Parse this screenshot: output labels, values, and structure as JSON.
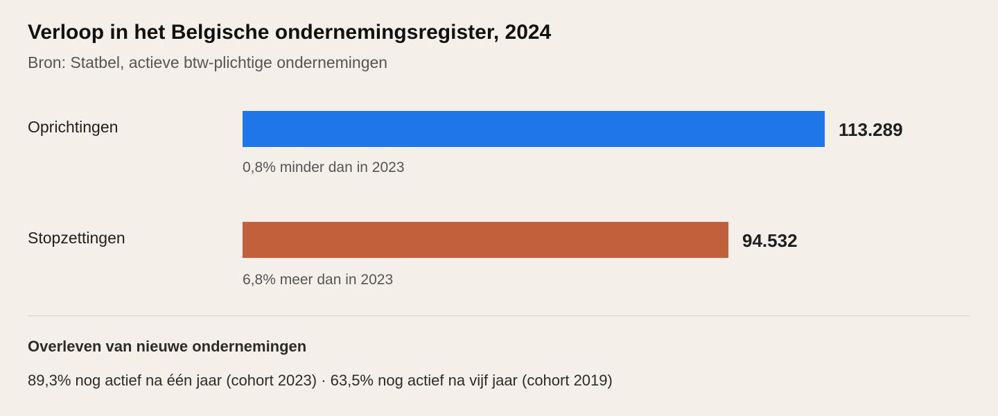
{
  "header": {
    "title": "Verloop in het Belgische ondernemingsregister, 2024",
    "subtitle": "Bron: Statbel, actieve btw-plichtige ondernemingen"
  },
  "chart_data": {
    "type": "bar",
    "orientation": "horizontal",
    "categories": [
      "Oprichtingen",
      "Stopzettingen"
    ],
    "values": [
      113289,
      94532
    ],
    "value_labels": [
      "113.289",
      "94.532"
    ],
    "notes": [
      "0,8% minder dan in 2023",
      "6,8% meer dan in 2023"
    ],
    "colors": [
      "#1e76e8",
      "#c2603b"
    ],
    "grid": false,
    "legend": "none"
  },
  "survival": {
    "heading": "Overleven van nieuwe ondernemingen",
    "text": "89,3% nog actief na één jaar (cohort 2023) · 63,5% nog actief na vijf jaar (cohort 2019)"
  }
}
